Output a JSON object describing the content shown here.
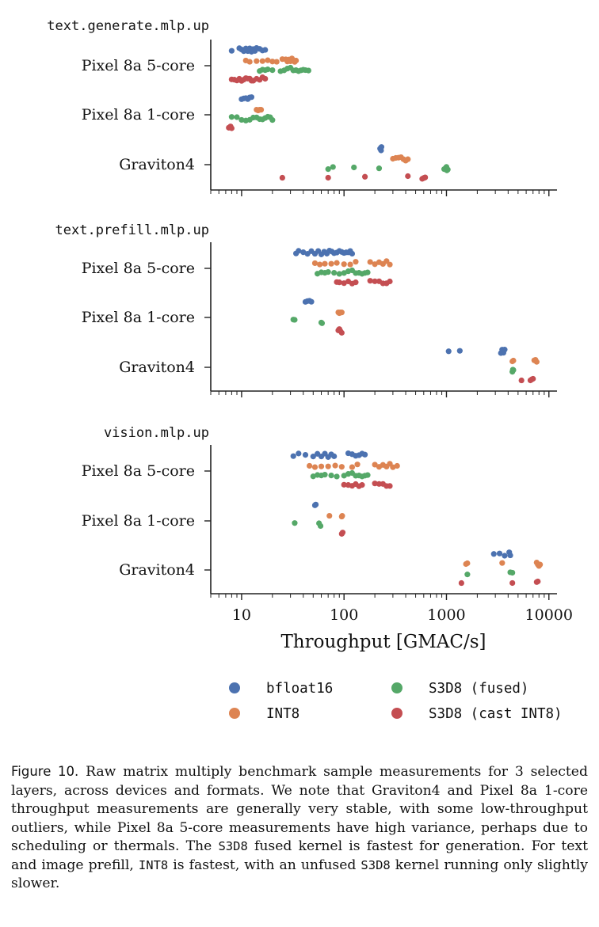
{
  "figure": {
    "xlabel": "Throughput [GMAC/s]",
    "x_ticks": [
      10,
      100,
      1000,
      10000
    ],
    "x_tick_labels": [
      "10",
      "100",
      "1000",
      "10000"
    ],
    "xscale": "log",
    "xlim": [
      5,
      12000
    ],
    "categories": [
      "Pixel 8a 5-core",
      "Pixel 8a 1-core",
      "Graviton4"
    ],
    "series_colors": {
      "bfloat16": "#4c72b0",
      "INT8": "#dd8452",
      "S3D8 (fused)": "#55a868",
      "S3D8 (cast INT8)": "#c44e52"
    },
    "legend": [
      {
        "label": "bfloat16",
        "color": "#4c72b0"
      },
      {
        "label": "S3D8 (fused)",
        "color": "#55a868"
      },
      {
        "label": "INT8",
        "color": "#dd8452"
      },
      {
        "label": "S3D8 (cast INT8)",
        "color": "#c44e52"
      }
    ]
  },
  "chart_data": [
    {
      "type": "scatter",
      "title": "text.generate.mlp.up",
      "xlabel": "",
      "ylabel": "",
      "categories": [
        "Pixel 8a 5-core",
        "Pixel 8a 1-core",
        "Graviton4"
      ],
      "series": [
        {
          "name": "bfloat16",
          "values": [
            [
              8,
              9.5,
              10,
              10.5,
              11,
              11.5,
              12,
              12.5,
              13,
              13.5,
              14,
              15,
              16,
              17
            ],
            [
              10,
              10.5,
              11,
              11.5,
              12,
              12.5
            ],
            [
              225,
              228,
              230,
              232
            ]
          ]
        },
        {
          "name": "INT8",
          "values": [
            [
              11,
              12,
              14,
              16,
              18,
              20,
              22,
              25,
              27,
              28,
              29,
              30,
              31,
              33,
              34
            ],
            [
              14,
              14.5,
              15,
              15.5
            ],
            [
              300,
              320,
              340,
              360,
              380,
              400,
              420
            ]
          ]
        },
        {
          "name": "S3D8 (fused)",
          "values": [
            [
              15,
              16,
              17,
              18,
              20,
              24,
              26,
              28,
              30,
              32,
              34,
              36,
              38,
              40,
              42,
              45
            ],
            [
              8,
              9,
              10,
              11,
              12,
              13,
              14,
              15,
              16,
              17,
              18,
              19,
              20
            ],
            [
              70,
              78,
              125,
              220,
              950,
              990,
              1000,
              1010,
              1030
            ]
          ]
        },
        {
          "name": "S3D8 (cast INT8)",
          "values": [
            [
              8,
              8.5,
              9,
              9.5,
              10,
              10.5,
              11,
              11.5,
              12,
              12.5,
              13,
              14,
              15,
              16,
              17
            ],
            [
              7.5,
              7.8,
              8
            ],
            [
              25,
              70,
              160,
              420,
              580,
              600,
              610,
              620
            ]
          ]
        }
      ]
    },
    {
      "type": "scatter",
      "title": "text.prefill.mlp.up",
      "xlabel": "",
      "ylabel": "",
      "categories": [
        "Pixel 8a 5-core",
        "Pixel 8a 1-core",
        "Graviton4"
      ],
      "series": [
        {
          "name": "bfloat16",
          "values": [
            [
              34,
              36,
              40,
              44,
              48,
              52,
              56,
              60,
              64,
              68,
              72,
              76,
              80,
              85,
              90,
              95,
              100,
              105,
              110,
              115,
              120
            ],
            [
              42,
              44,
              46,
              48
            ],
            [
              1050,
              1350,
              3400,
              3500,
              3600,
              3700
            ]
          ]
        },
        {
          "name": "INT8",
          "values": [
            [
              52,
              58,
              65,
              75,
              85,
              100,
              115,
              130,
              180,
              200,
              220,
              240,
              260,
              280
            ],
            [
              88,
              90,
              92,
              95
            ],
            [
              4400,
              4500,
              7200,
              7400,
              7600
            ]
          ]
        },
        {
          "name": "S3D8 (fused)",
          "values": [
            [
              55,
              60,
              65,
              70,
              80,
              90,
              100,
              110,
              120,
              130,
              140,
              150,
              160,
              170
            ],
            [
              32,
              33,
              60,
              61
            ],
            [
              4400,
              4450,
              4500
            ]
          ]
        },
        {
          "name": "S3D8 (cast INT8)",
          "values": [
            [
              85,
              90,
              100,
              110,
              120,
              130,
              180,
              200,
              220,
              240,
              260,
              280
            ],
            [
              88,
              90,
              92,
              95
            ],
            [
              5400,
              6600,
              6800,
              7000
            ]
          ]
        }
      ]
    },
    {
      "type": "scatter",
      "title": "vision.mlp.up",
      "xlabel": "",
      "ylabel": "",
      "categories": [
        "Pixel 8a 5-core",
        "Pixel 8a 1-core",
        "Graviton4"
      ],
      "series": [
        {
          "name": "bfloat16",
          "values": [
            [
              32,
              36,
              42,
              50,
              55,
              60,
              65,
              70,
              75,
              80,
              110,
              120,
              130,
              140,
              150,
              160
            ],
            [
              52,
              53
            ],
            [
              2900,
              3300,
              3700,
              4100,
              4200
            ]
          ]
        },
        {
          "name": "INT8",
          "values": [
            [
              46,
              52,
              60,
              70,
              82,
              95,
              120,
              135,
              200,
              220,
              240,
              260,
              280,
              300,
              330
            ],
            [
              72,
              95,
              96
            ],
            [
              1550,
              1600,
              3500,
              7600,
              7800,
              8000,
              8200
            ]
          ]
        },
        {
          "name": "S3D8 (fused)",
          "values": [
            [
              50,
              55,
              60,
              65,
              75,
              85,
              100,
              110,
              120,
              130,
              140,
              150,
              160,
              170
            ],
            [
              33,
              57,
              59
            ],
            [
              1600,
              4200,
              4400
            ]
          ]
        },
        {
          "name": "S3D8 (cast INT8)",
          "values": [
            [
              100,
              110,
              120,
              130,
              140,
              150,
              200,
              220,
              240,
              260,
              280
            ],
            [
              95,
              97
            ],
            [
              1400,
              4400,
              7600,
              7800
            ]
          ]
        }
      ]
    }
  ],
  "caption": {
    "label": "Figure 10.",
    "t1": " Raw matrix multiply benchmark sample measurements for 3 selected layers, across devices and formats. We note that Graviton4 and Pixel 8a 1-core throughput measurements are generally very stable, with some low-throughput outliers, while Pixel 8a 5-core measurements have high variance, perhaps due to scheduling or thermals. The ",
    "code1": "S3D8",
    "t2": " fused kernel is fastest for generation. For text and image prefill, ",
    "code2": "INT8",
    "t3": " is fastest, with an unfused ",
    "code3": "S3D8",
    "t4": " kernel running only slightly slower."
  }
}
